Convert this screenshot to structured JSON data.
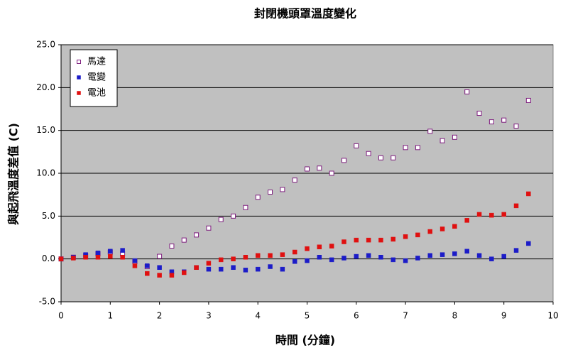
{
  "chart_data": {
    "type": "scatter",
    "title": "封閉機頭罩溫度變化",
    "x_label": "時間 (分鐘)",
    "y_label": "與起飛溫度差值 (C)",
    "x": [
      0,
      0.25,
      0.5,
      0.75,
      1,
      1.25,
      1.5,
      1.75,
      2,
      2.25,
      2.5,
      2.75,
      3,
      3.25,
      3.5,
      3.75,
      4,
      4.25,
      4.5,
      4.75,
      5,
      5.25,
      5.5,
      5.75,
      6,
      6.25,
      6.5,
      6.75,
      7,
      7.25,
      7.5,
      7.75,
      8,
      8.25,
      8.5,
      8.75,
      9,
      9.25,
      9.5
    ],
    "series": [
      {
        "name": "馬達",
        "color": "#7f1f7f",
        "hollow": true,
        "values": [
          0,
          0.2,
          0.4,
          0.6,
          0.8,
          0.6,
          -0.3,
          -0.9,
          0.3,
          1.5,
          2.2,
          2.8,
          3.6,
          4.6,
          5.0,
          6.0,
          7.2,
          7.8,
          8.1,
          9.2,
          10.5,
          10.6,
          10.0,
          11.5,
          13.2,
          12.3,
          11.8,
          11.8,
          13.0,
          13.0,
          14.9,
          13.8,
          14.2,
          19.5,
          17.0,
          16.0,
          16.2,
          15.5,
          18.5
        ]
      },
      {
        "name": "電變",
        "color": "#1c1cc8",
        "hollow": false,
        "values": [
          0,
          0.2,
          0.5,
          0.7,
          0.9,
          1.0,
          -0.2,
          -0.8,
          -1.0,
          -1.5,
          -1.5,
          -1.0,
          -1.2,
          -1.2,
          -1.0,
          -1.3,
          -1.2,
          -0.9,
          -1.2,
          -0.3,
          -0.2,
          0.2,
          -0.1,
          0.1,
          0.3,
          0.4,
          0.2,
          -0.1,
          -0.2,
          0.1,
          0.4,
          0.5,
          0.6,
          0.9,
          0.4,
          0,
          0.3,
          1.0,
          1.8
        ]
      },
      {
        "name": "電池",
        "color": "#e01010",
        "hollow": false,
        "values": [
          0,
          0.1,
          0.2,
          0.2,
          0.3,
          0.2,
          -0.8,
          -1.7,
          -1.9,
          -1.9,
          -1.6,
          -1.0,
          -0.5,
          -0.1,
          0.0,
          0.2,
          0.4,
          0.4,
          0.5,
          0.8,
          1.2,
          1.4,
          1.5,
          2.0,
          2.2,
          2.2,
          2.2,
          2.3,
          2.6,
          2.8,
          3.2,
          3.5,
          3.8,
          4.5,
          5.2,
          5.1,
          5.2,
          6.2,
          7.6
        ]
      }
    ],
    "xlim": [
      0,
      10
    ],
    "xticks": [
      0,
      1,
      2,
      3,
      4,
      5,
      6,
      7,
      8,
      9,
      10
    ],
    "ylim": [
      -5,
      25
    ],
    "yticks": [
      {
        "value": -5,
        "label": "-5.0"
      },
      {
        "value": 0,
        "label": "0.0"
      },
      {
        "value": 5,
        "label": "5.0"
      },
      {
        "value": 10,
        "label": "10.0"
      },
      {
        "value": 15,
        "label": "15.0"
      },
      {
        "value": 20,
        "label": "20.0"
      },
      {
        "value": 25,
        "label": "25.0"
      }
    ],
    "grid": true,
    "legend": "upper-left",
    "background": "#c0c0c0"
  }
}
